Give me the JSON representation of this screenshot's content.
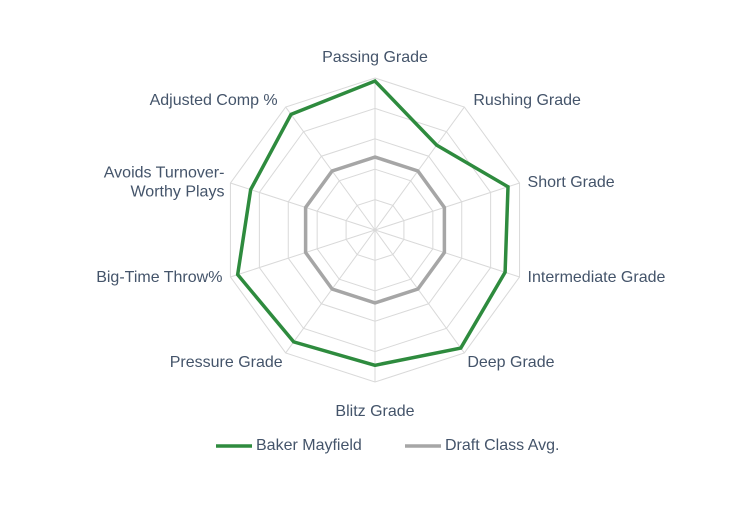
{
  "chart_data": {
    "type": "radar",
    "categories": [
      "Passing Grade",
      "Rushing Grade",
      "Short Grade",
      "Intermediate Grade",
      "Deep Grade",
      "Blitz Grade",
      "Pressure Grade",
      "Big-Time Throw%",
      "Avoids Turnover-Worthy Plays",
      "Adjusted Comp %"
    ],
    "series": [
      {
        "name": "Baker Mayfield",
        "color": "#2e8b3e",
        "values": [
          98,
          69,
          92,
          90,
          96,
          89,
          91,
          95,
          86,
          94
        ]
      },
      {
        "name": "Draft Class Avg.",
        "color": "#a6a6a6",
        "values": [
          48,
          48,
          48,
          48,
          48,
          48,
          48,
          48,
          48,
          48
        ]
      }
    ],
    "rlim": [
      0,
      100
    ],
    "grid": true,
    "legend_position": "bottom"
  }
}
